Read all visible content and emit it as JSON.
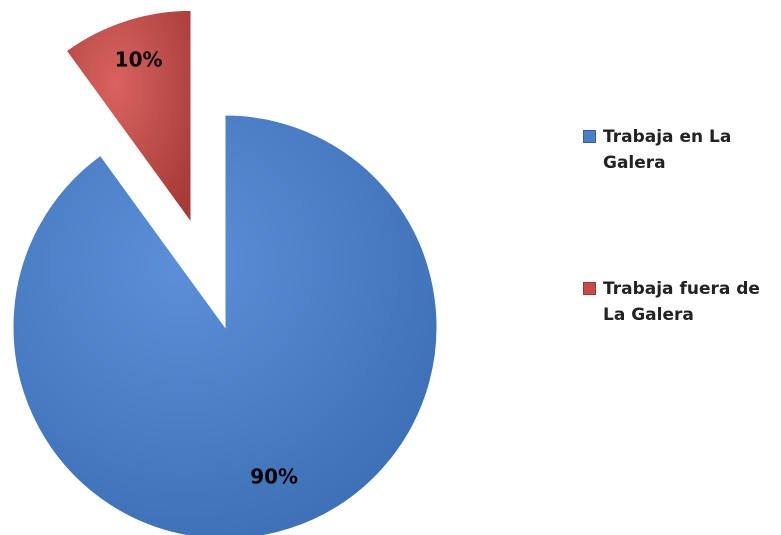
{
  "chart_data": {
    "type": "pie",
    "categories": [
      "Trabaja en La Galera",
      "Trabaja fuera de La Galera"
    ],
    "values": [
      90,
      10
    ],
    "value_labels": [
      "90%",
      "10%"
    ],
    "colors": [
      "#4a7fc9",
      "#c64a47"
    ],
    "exploded": [
      false,
      true
    ]
  }
}
